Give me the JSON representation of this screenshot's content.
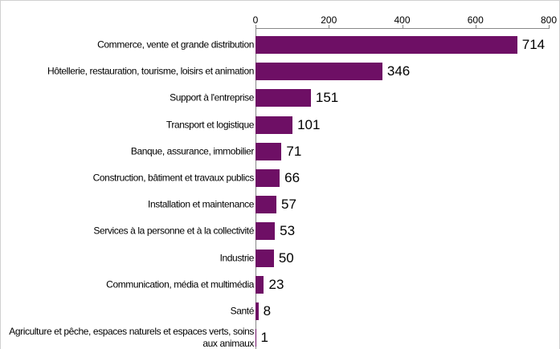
{
  "chart_data": {
    "type": "bar",
    "orientation": "horizontal",
    "categories": [
      "Commerce, vente et grande distribution",
      "Hôtellerie, restauration, tourisme, loisirs et animation",
      "Support à l'entreprise",
      "Transport et logistique",
      "Banque, assurance, immobilier",
      "Construction, bâtiment et travaux publics",
      "Installation et maintenance",
      "Services à la personne et à la collectivité",
      "Industrie",
      "Communication, média et multimédia",
      "Santé",
      "Agriculture et pêche, espaces naturels et espaces verts, soins aux animaux"
    ],
    "values": [
      714,
      346,
      151,
      101,
      71,
      66,
      57,
      53,
      50,
      23,
      8,
      1
    ],
    "color": "#6e0f65",
    "xlim": [
      0,
      800
    ],
    "xticks": [
      0,
      200,
      400,
      600,
      800
    ]
  }
}
